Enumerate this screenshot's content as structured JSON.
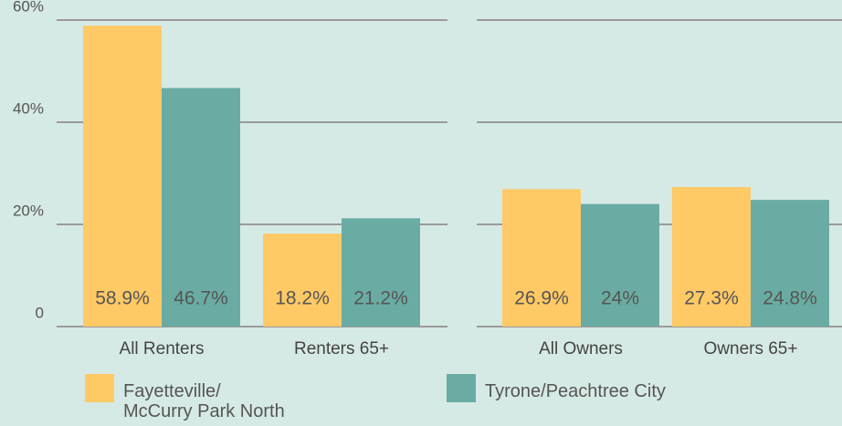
{
  "chart_data": [
    {
      "type": "bar",
      "categories": [
        "All Renters",
        "Renters 65+"
      ],
      "series": [
        {
          "name": "Fayetteville/\nMcCurry Park North",
          "color": "#ffc966",
          "values": [
            58.9,
            18.2
          ],
          "value_labels": [
            "58.9%",
            "18.2%"
          ]
        },
        {
          "name": "Tyrone/Peachtree City",
          "color": "#6aaca3",
          "values": [
            46.7,
            21.2
          ],
          "value_labels": [
            "46.7%",
            "21.2%"
          ]
        }
      ],
      "ylim": [
        0,
        60
      ],
      "yticks": [
        {
          "value": 0,
          "label": "0"
        },
        {
          "value": 20,
          "label": "20%"
        },
        {
          "value": 40,
          "label": "40%"
        },
        {
          "value": 60,
          "label": "60%"
        }
      ],
      "grid": true
    },
    {
      "type": "bar",
      "categories": [
        "All Owners",
        "Owners 65+"
      ],
      "series": [
        {
          "name": "Fayetteville/\nMcCurry Park North",
          "color": "#ffc966",
          "values": [
            26.9,
            27.3
          ],
          "value_labels": [
            "26.9%",
            "27.3%"
          ]
        },
        {
          "name": "Tyrone/Peachtree City",
          "color": "#6aaca3",
          "values": [
            24,
            24.8
          ],
          "value_labels": [
            "24%",
            "24.8%"
          ]
        }
      ],
      "ylim": [
        0,
        60
      ],
      "yticks": [
        0,
        20,
        40,
        60
      ],
      "grid": true
    }
  ]
}
